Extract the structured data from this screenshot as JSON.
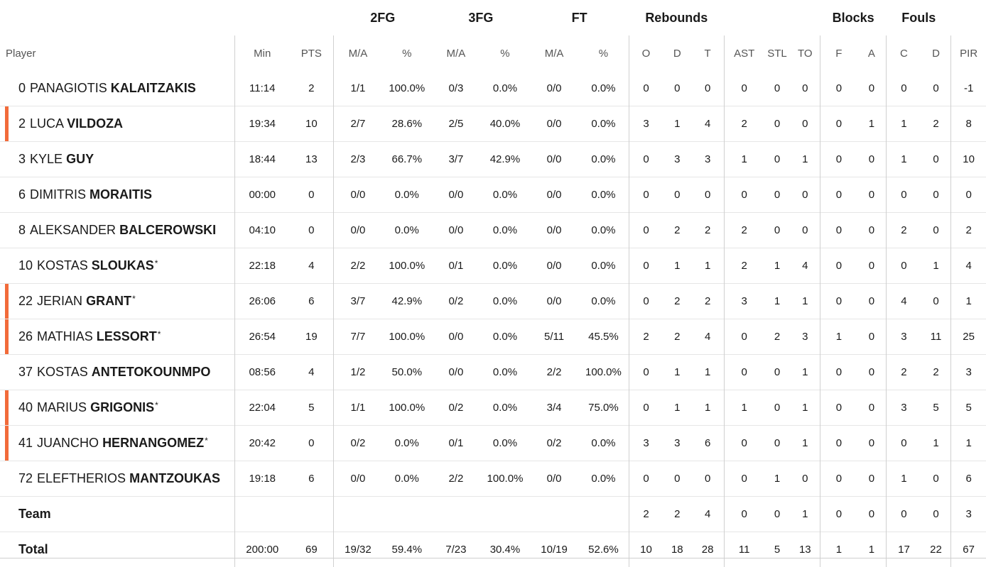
{
  "group_headers": [
    "2FG",
    "3FG",
    "FT",
    "Rebounds",
    "Blocks",
    "Fouls"
  ],
  "column_headers": [
    "Player",
    "Min",
    "PTS",
    "M/A",
    "%",
    "M/A",
    "%",
    "M/A",
    "%",
    "O",
    "D",
    "T",
    "AST",
    "STL",
    "TO",
    "F",
    "A",
    "C",
    "D",
    "PIR"
  ],
  "accent_color": "#f26b3a",
  "rows": [
    {
      "num": "0",
      "first": "PANAGIOTIS",
      "last": "KALAITZAKIS",
      "star": "",
      "marked": false,
      "stats": [
        "11:14",
        "2",
        "1/1",
        "100.0%",
        "0/3",
        "0.0%",
        "0/0",
        "0.0%",
        "0",
        "0",
        "0",
        "0",
        "0",
        "0",
        "0",
        "0",
        "0",
        "0",
        "-1"
      ]
    },
    {
      "num": "2",
      "first": "LUCA",
      "last": "VILDOZA",
      "star": "",
      "marked": true,
      "stats": [
        "19:34",
        "10",
        "2/7",
        "28.6%",
        "2/5",
        "40.0%",
        "0/0",
        "0.0%",
        "3",
        "1",
        "4",
        "2",
        "0",
        "0",
        "0",
        "1",
        "1",
        "2",
        "8"
      ]
    },
    {
      "num": "3",
      "first": "KYLE",
      "last": "GUY",
      "star": "",
      "marked": false,
      "stats": [
        "18:44",
        "13",
        "2/3",
        "66.7%",
        "3/7",
        "42.9%",
        "0/0",
        "0.0%",
        "0",
        "3",
        "3",
        "1",
        "0",
        "1",
        "0",
        "0",
        "1",
        "0",
        "10"
      ]
    },
    {
      "num": "6",
      "first": "DIMITRIS",
      "last": "MORAITIS",
      "star": "",
      "marked": false,
      "stats": [
        "00:00",
        "0",
        "0/0",
        "0.0%",
        "0/0",
        "0.0%",
        "0/0",
        "0.0%",
        "0",
        "0",
        "0",
        "0",
        "0",
        "0",
        "0",
        "0",
        "0",
        "0",
        "0"
      ]
    },
    {
      "num": "8",
      "first": "ALEKSANDER",
      "last": "BALCEROWSKI",
      "star": "",
      "marked": false,
      "stats": [
        "04:10",
        "0",
        "0/0",
        "0.0%",
        "0/0",
        "0.0%",
        "0/0",
        "0.0%",
        "0",
        "2",
        "2",
        "2",
        "0",
        "0",
        "0",
        "0",
        "2",
        "0",
        "2"
      ]
    },
    {
      "num": "10",
      "first": "KOSTAS",
      "last": "SLOUKAS",
      "star": "*",
      "marked": false,
      "stats": [
        "22:18",
        "4",
        "2/2",
        "100.0%",
        "0/1",
        "0.0%",
        "0/0",
        "0.0%",
        "0",
        "1",
        "1",
        "2",
        "1",
        "4",
        "0",
        "0",
        "0",
        "1",
        "4"
      ]
    },
    {
      "num": "22",
      "first": "JERIAN",
      "last": "GRANT",
      "star": "*",
      "marked": true,
      "stats": [
        "26:06",
        "6",
        "3/7",
        "42.9%",
        "0/2",
        "0.0%",
        "0/0",
        "0.0%",
        "0",
        "2",
        "2",
        "3",
        "1",
        "1",
        "0",
        "0",
        "4",
        "0",
        "1"
      ]
    },
    {
      "num": "26",
      "first": "MATHIAS",
      "last": "LESSORT",
      "star": "*",
      "marked": true,
      "stats": [
        "26:54",
        "19",
        "7/7",
        "100.0%",
        "0/0",
        "0.0%",
        "5/11",
        "45.5%",
        "2",
        "2",
        "4",
        "0",
        "2",
        "3",
        "1",
        "0",
        "3",
        "11",
        "25"
      ]
    },
    {
      "num": "37",
      "first": "KOSTAS",
      "last": "ANTETOKOUNMPO",
      "star": "",
      "marked": false,
      "stats": [
        "08:56",
        "4",
        "1/2",
        "50.0%",
        "0/0",
        "0.0%",
        "2/2",
        "100.0%",
        "0",
        "1",
        "1",
        "0",
        "0",
        "1",
        "0",
        "0",
        "2",
        "2",
        "3"
      ]
    },
    {
      "num": "40",
      "first": "MARIUS",
      "last": "GRIGONIS",
      "star": "*",
      "marked": true,
      "stats": [
        "22:04",
        "5",
        "1/1",
        "100.0%",
        "0/2",
        "0.0%",
        "3/4",
        "75.0%",
        "0",
        "1",
        "1",
        "1",
        "0",
        "1",
        "0",
        "0",
        "3",
        "5",
        "5"
      ]
    },
    {
      "num": "41",
      "first": "JUANCHO",
      "last": "HERNANGOMEZ",
      "star": "*",
      "marked": true,
      "stats": [
        "20:42",
        "0",
        "0/2",
        "0.0%",
        "0/1",
        "0.0%",
        "0/2",
        "0.0%",
        "3",
        "3",
        "6",
        "0",
        "0",
        "1",
        "0",
        "0",
        "0",
        "1",
        "1"
      ]
    },
    {
      "num": "72",
      "first": "ELEFTHERIOS",
      "last": "MANTZOUKAS",
      "star": "",
      "marked": false,
      "stats": [
        "19:18",
        "6",
        "0/0",
        "0.0%",
        "2/2",
        "100.0%",
        "0/0",
        "0.0%",
        "0",
        "0",
        "0",
        "0",
        "1",
        "0",
        "0",
        "0",
        "1",
        "0",
        "6"
      ]
    }
  ],
  "team_row": {
    "label": "Team",
    "stats": [
      "",
      "",
      "",
      "",
      "",
      "",
      "",
      "",
      "2",
      "2",
      "4",
      "0",
      "0",
      "1",
      "0",
      "0",
      "0",
      "0",
      "3"
    ]
  },
  "total_row": {
    "label": "Total",
    "stats": [
      "200:00",
      "69",
      "19/32",
      "59.4%",
      "7/23",
      "30.4%",
      "10/19",
      "52.6%",
      "10",
      "18",
      "28",
      "11",
      "5",
      "13",
      "1",
      "1",
      "17",
      "22",
      "67"
    ]
  }
}
